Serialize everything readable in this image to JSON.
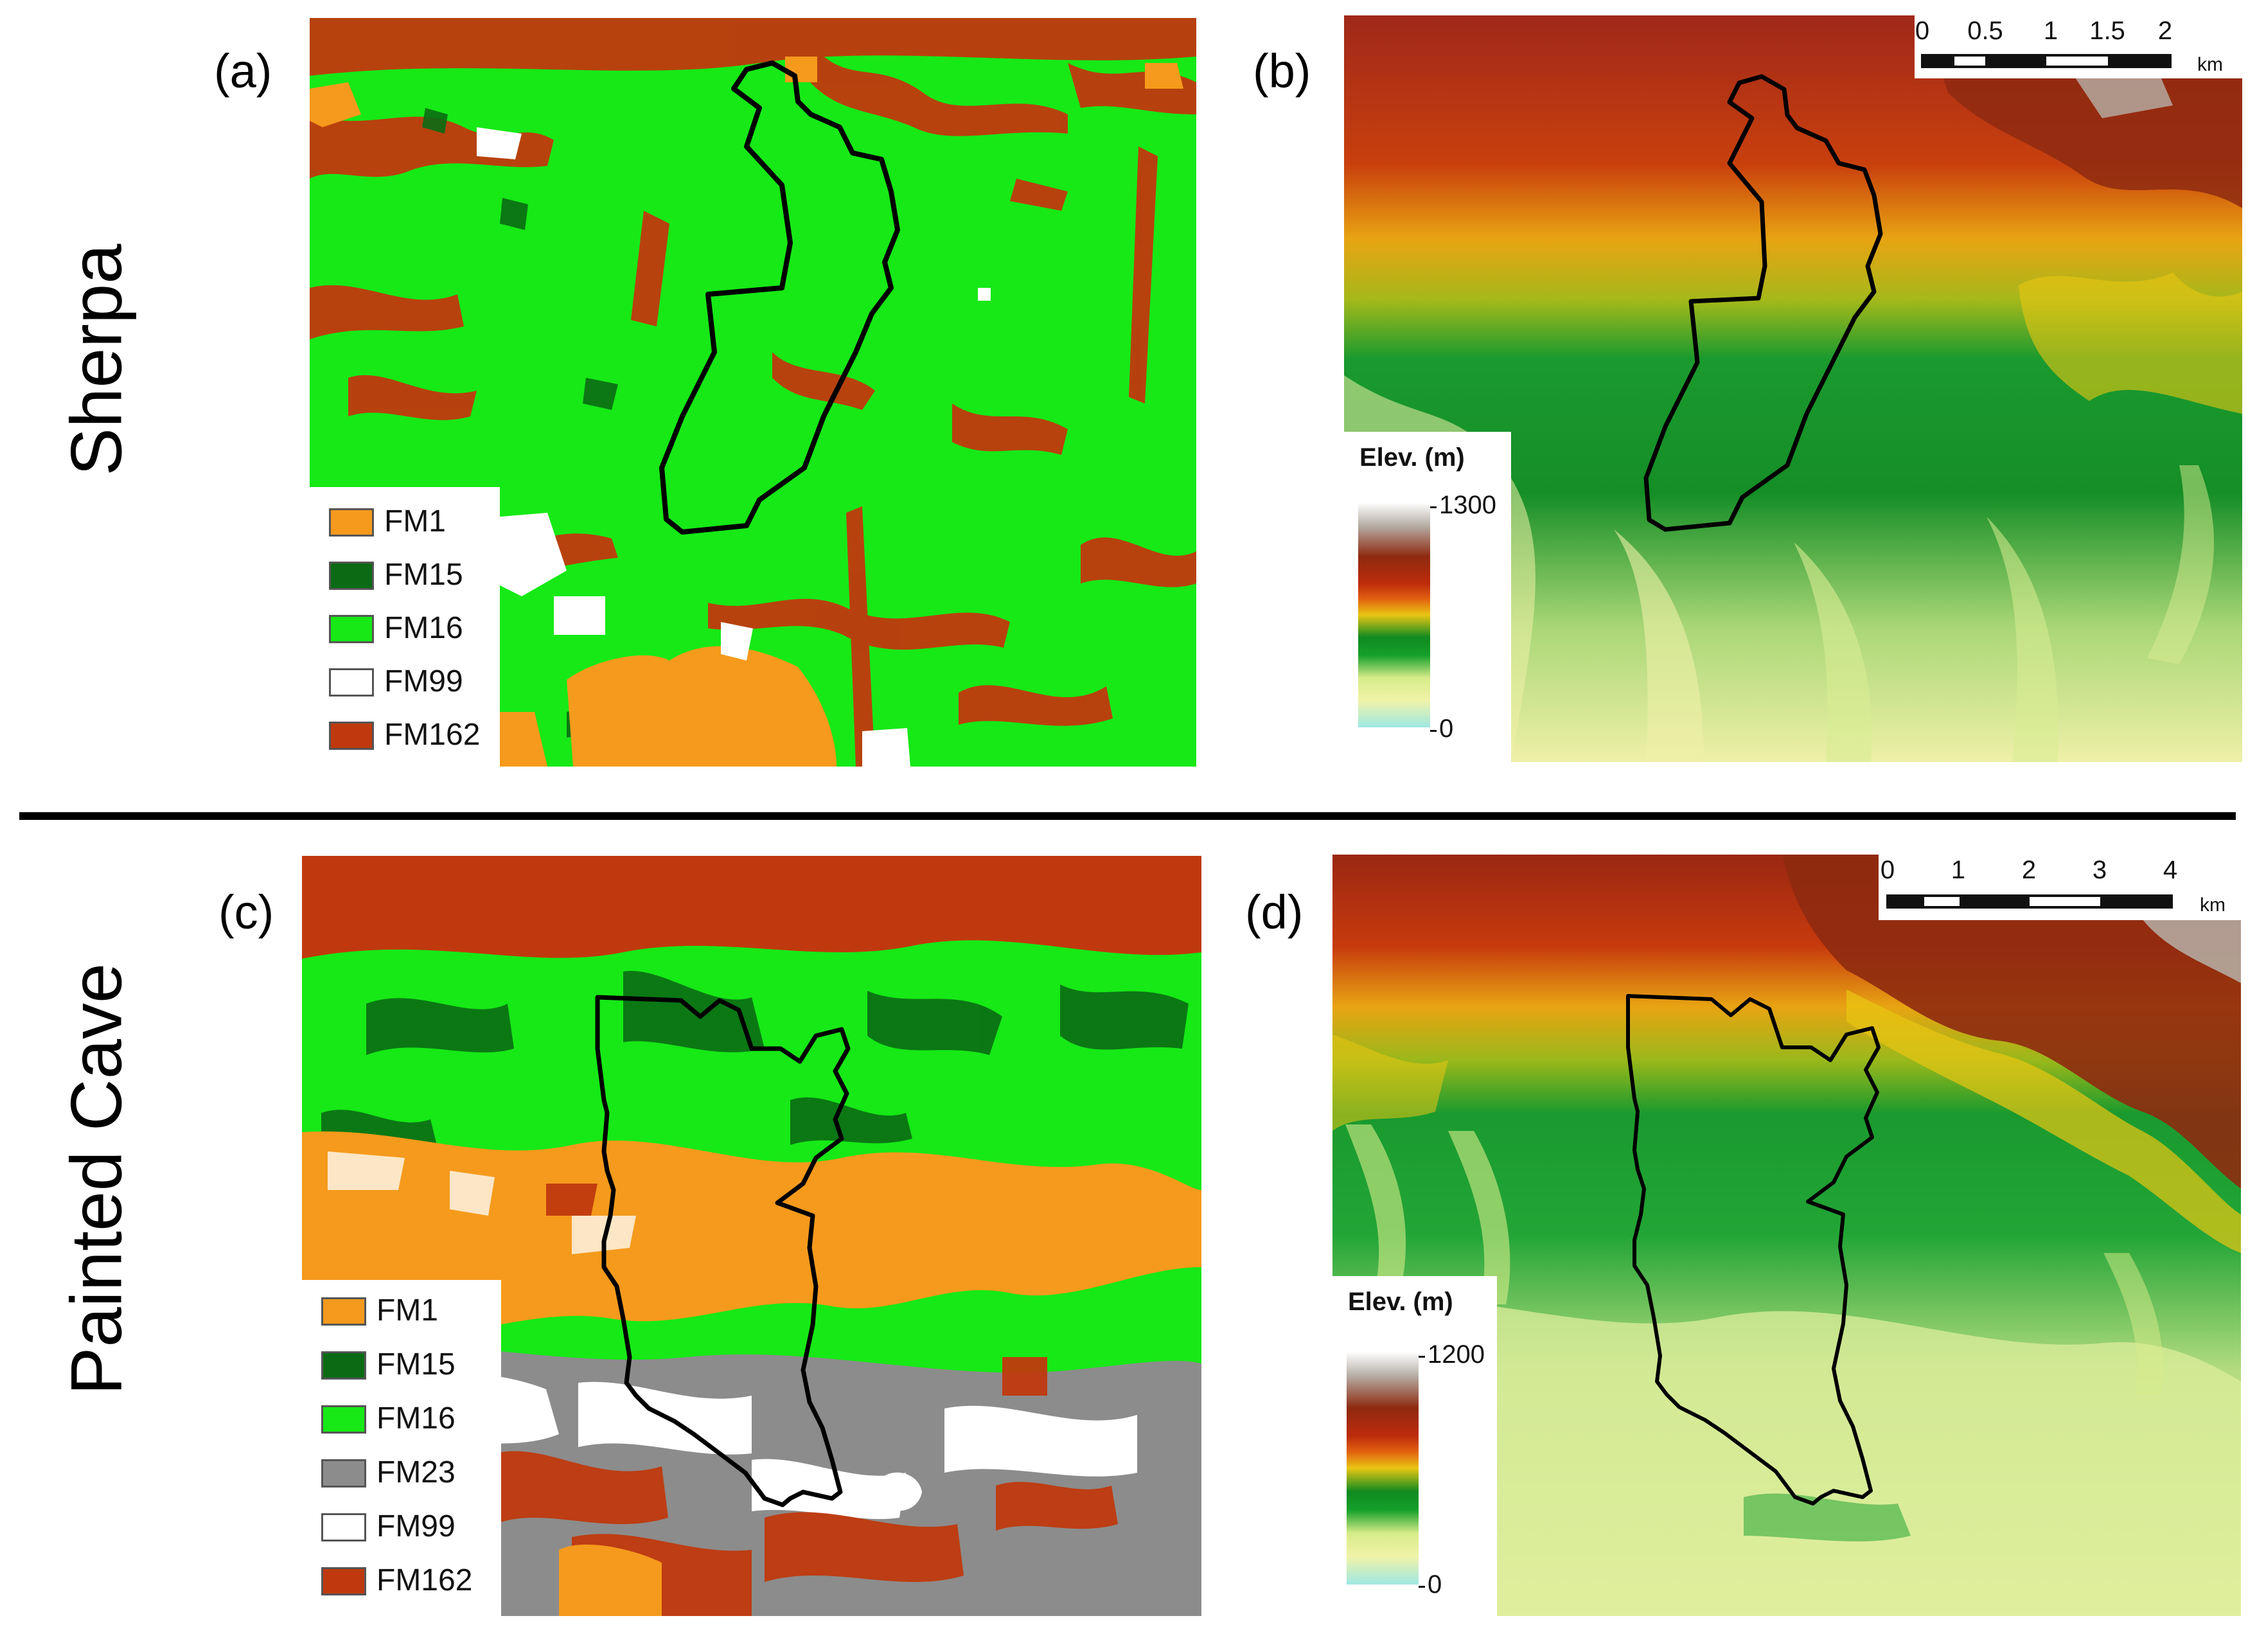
{
  "figure": {
    "row_titles": {
      "top": "Sherpa",
      "bottom": "Painted Cave"
    },
    "panel_letters": {
      "a": "(a)",
      "b": "(b)",
      "c": "(c)",
      "d": "(d)"
    }
  },
  "fuel_legend_top": {
    "items": [
      {
        "label": "FM1",
        "color": "#f59a1c"
      },
      {
        "label": "FM15",
        "color": "#0a6b14"
      },
      {
        "label": "FM16",
        "color": "#16e916"
      },
      {
        "label": "FM99",
        "color": "#ffffff"
      },
      {
        "label": "FM162",
        "color": "#c0390e"
      }
    ]
  },
  "fuel_legend_bottom": {
    "items": [
      {
        "label": "FM1",
        "color": "#f59a1c"
      },
      {
        "label": "FM15",
        "color": "#0a6b14"
      },
      {
        "label": "FM16",
        "color": "#16e916"
      },
      {
        "label": "FM23",
        "color": "#8c8c8c"
      },
      {
        "label": "FM99",
        "color": "#ffffff"
      },
      {
        "label": "FM162",
        "color": "#c0390e"
      }
    ]
  },
  "elevation_legend_top": {
    "title": "Elev. (m)",
    "max": "1300",
    "min": "0"
  },
  "elevation_legend_bottom": {
    "title": "Elev. (m)",
    "max": "1200",
    "min": "0"
  },
  "scalebar_top": {
    "labels": [
      "0",
      "0.5",
      "1",
      "1.5",
      "2"
    ],
    "unit": "km"
  },
  "scalebar_bottom": {
    "labels": [
      "0",
      "1",
      "2",
      "3",
      "4"
    ],
    "unit": "km"
  },
  "colors": {
    "fm1": "#f59a1c",
    "fm15": "#0a6b14",
    "fm16": "#16e916",
    "fm23": "#8c8c8c",
    "fm99": "#ffffff",
    "fm162": "#c0390e",
    "elevation_ramp": [
      "#9ee8e2",
      "#f0f3a8",
      "#d7ec8a",
      "#15a02a",
      "#108a20",
      "#e9c612",
      "#e26210",
      "#bd2b0b",
      "#8e2a10",
      "#b7b0a8",
      "#ffffff"
    ],
    "perimeter": "#000000"
  }
}
